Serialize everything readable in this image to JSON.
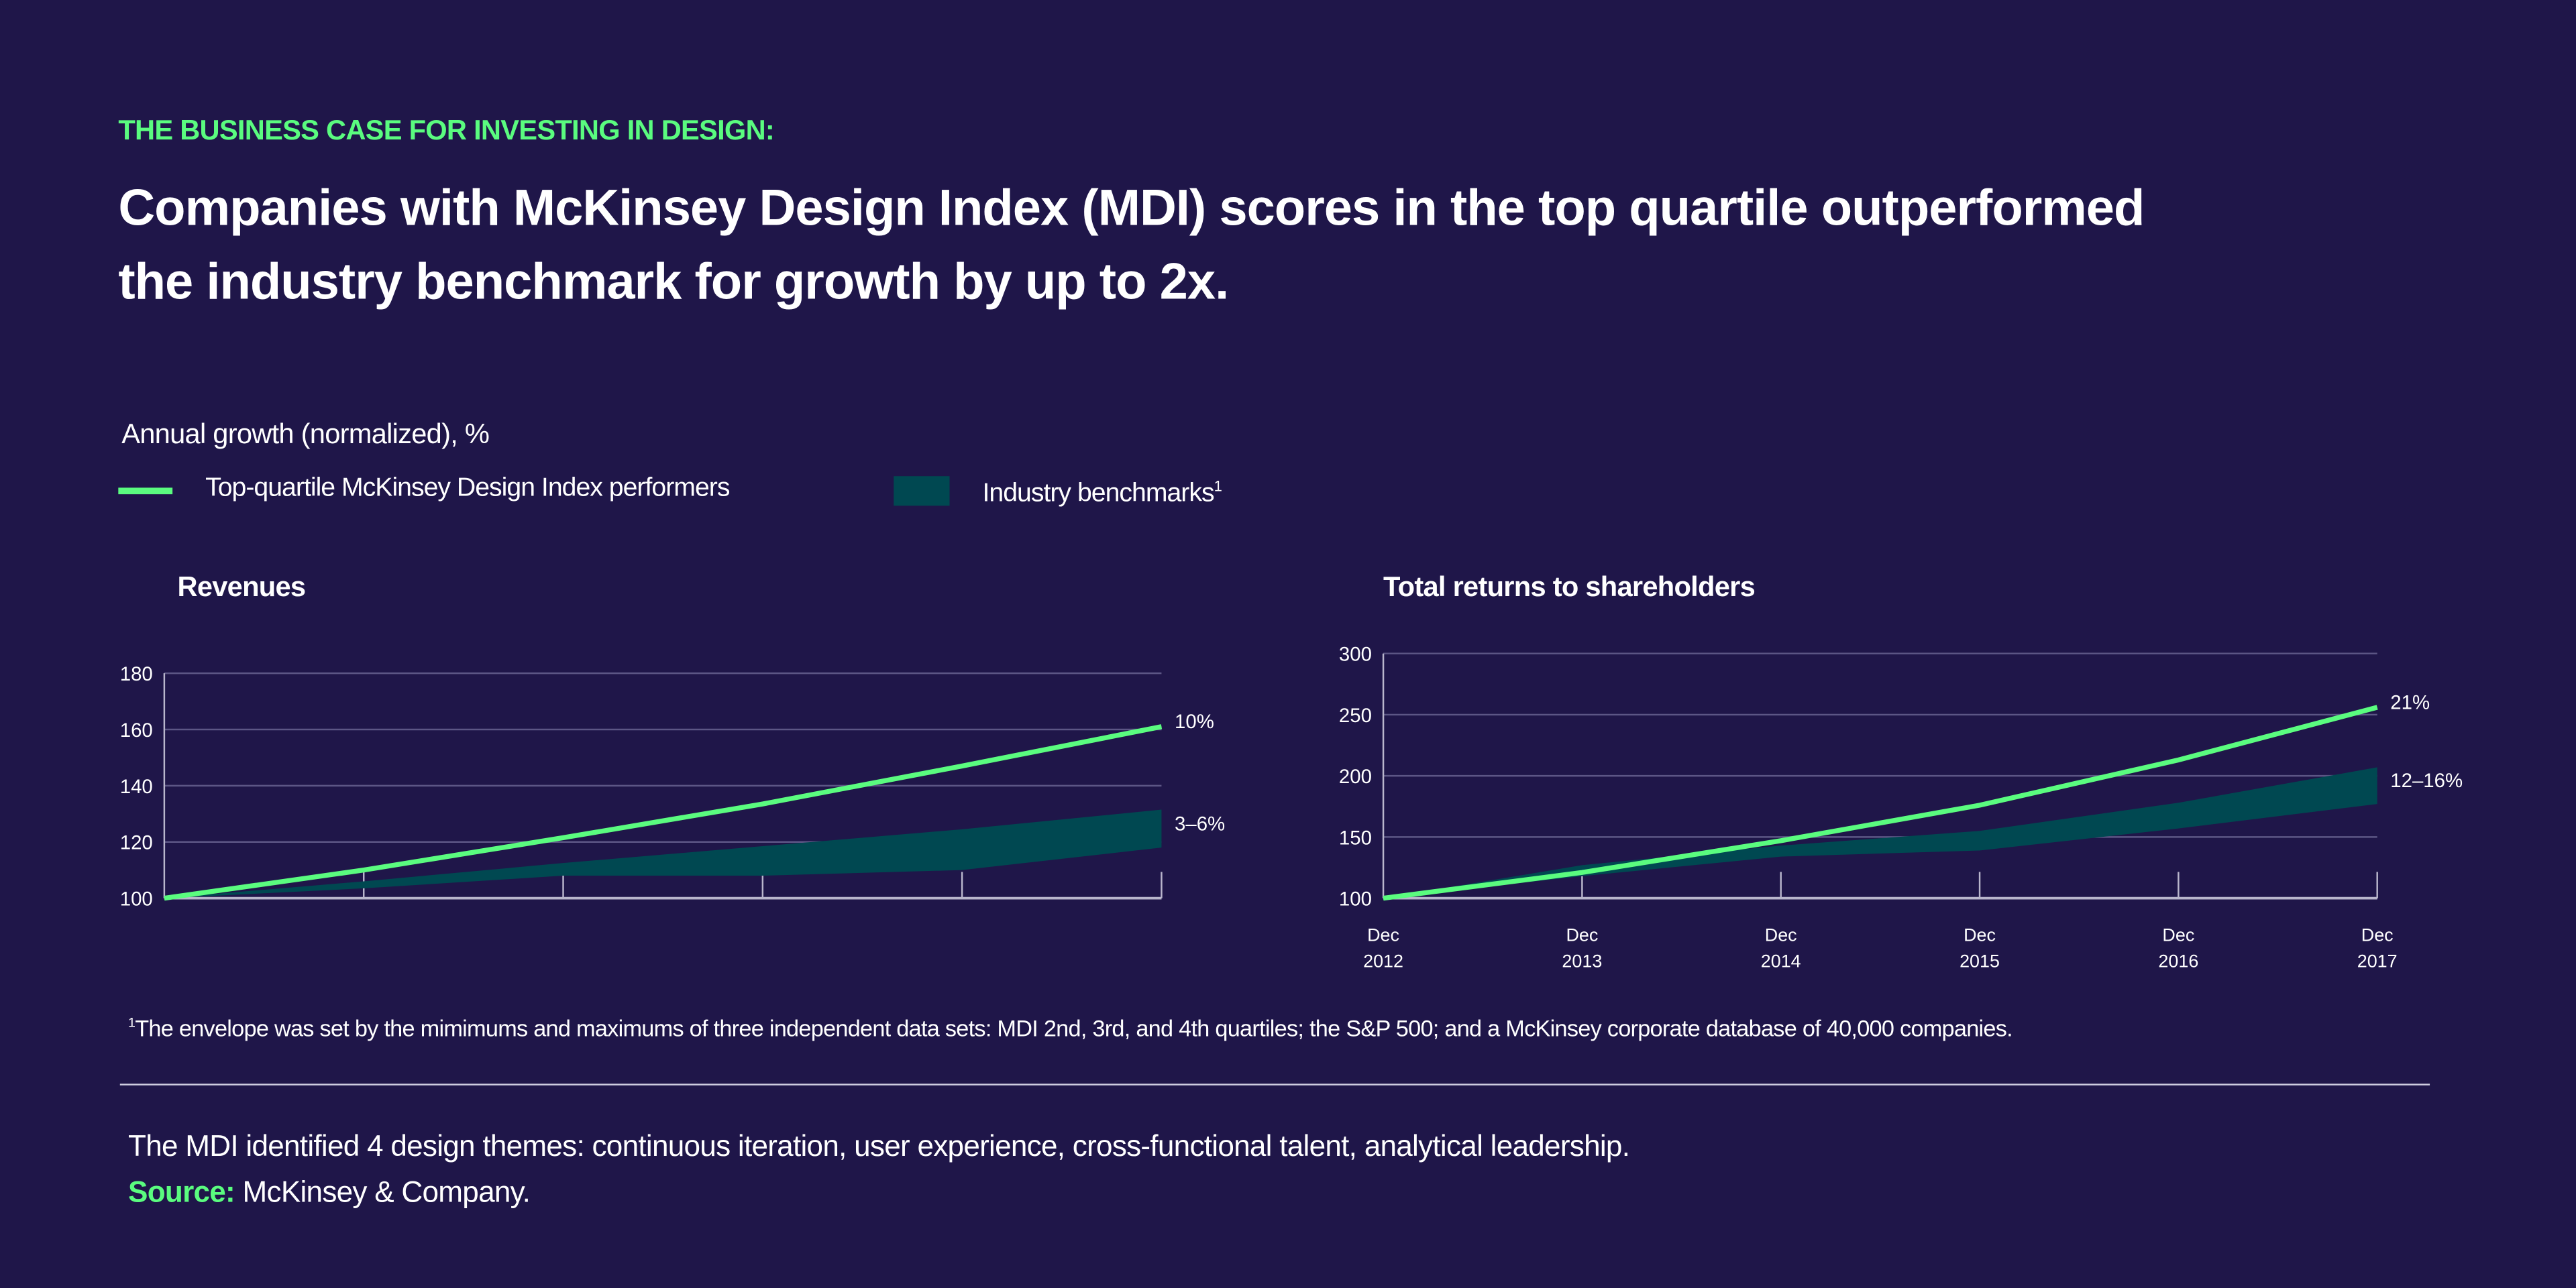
{
  "kicker": "THE BUSINESS CASE FOR INVESTING IN DESIGN:",
  "headline": {
    "line1": "Companies with McKinsey Design Index (MDI) scores in the top quartile outperformed",
    "line2": "the industry benchmark for growth by up to 2x."
  },
  "units_label": "Annual growth (normalized), %",
  "legend": {
    "line_label": "Top-quartile McKinsey Design Index performers",
    "band_label": "Industry benchmarks",
    "band_footnote_mark": "1"
  },
  "colors": {
    "background": "#1f1649",
    "line": "#5afc7f",
    "band": "#004851",
    "grid": "#5c5685"
  },
  "chart_data": [
    {
      "type": "area",
      "title": "Revenues",
      "x": [
        "Dec 2012",
        "Dec 2013",
        "Dec 2014",
        "Dec 2015",
        "Dec 2016",
        "Dec 2017"
      ],
      "show_x_labels": false,
      "ylim": [
        100,
        180
      ],
      "yticks": [
        100,
        120,
        140,
        160,
        180
      ],
      "grid": true,
      "series": [
        {
          "role": "line",
          "values": [
            100,
            110,
            121.5,
            133.5,
            147,
            161
          ],
          "end_label": "10%"
        },
        {
          "role": "band",
          "low": [
            100,
            103.5,
            108,
            108,
            110,
            118
          ],
          "high": [
            100,
            106,
            112.5,
            118.5,
            124.5,
            131.5
          ],
          "end_label": "3–6%"
        }
      ]
    },
    {
      "type": "area",
      "title": "Total returns to shareholders",
      "x": [
        "Dec 2012",
        "Dec 2013",
        "Dec 2014",
        "Dec 2015",
        "Dec 2016",
        "Dec 2017"
      ],
      "x_labels": [
        [
          "Dec",
          "2012"
        ],
        [
          "Dec",
          "2013"
        ],
        [
          "Dec",
          "2014"
        ],
        [
          "Dec",
          "2015"
        ],
        [
          "Dec",
          "2016"
        ],
        [
          "Dec",
          "2017"
        ]
      ],
      "show_x_labels": true,
      "ylim": [
        100,
        300
      ],
      "yticks": [
        100,
        150,
        200,
        250,
        300
      ],
      "grid": true,
      "series": [
        {
          "role": "line",
          "values": [
            100,
            121,
            147,
            176,
            213,
            256
          ],
          "end_label": "21%"
        },
        {
          "role": "band",
          "low": [
            100,
            118,
            134,
            139,
            157,
            177
          ],
          "high": [
            100,
            127,
            143,
            155,
            178,
            207
          ],
          "end_label": "12–16%"
        }
      ]
    }
  ],
  "footnote": {
    "mark": "1",
    "text": "The envelope was set by the mimimums and maximums of three independent data sets: MDI 2nd, 3rd, and 4th quartiles; the S&P 500; and a McKinsey corporate database of 40,000 companies."
  },
  "themes_text": "The MDI identified 4 design themes: continuous iteration, user experience, cross-functional talent, analytical leadership.",
  "source": {
    "label": "Source:",
    "text": "McKinsey & Company."
  }
}
